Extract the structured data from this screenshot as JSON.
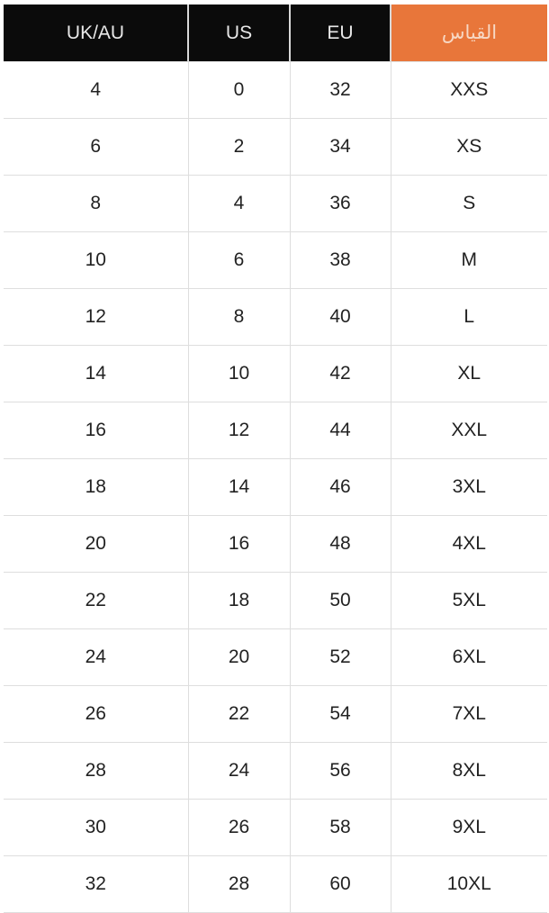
{
  "colors": {
    "header_bg": "#0b0b0b",
    "accent_header_bg": "#e8763a",
    "grid": "#dedede"
  },
  "headers": [
    "UK/AU",
    "US",
    "EU",
    "القياس"
  ],
  "rows": [
    [
      "4",
      "0",
      "32",
      "XXS"
    ],
    [
      "6",
      "2",
      "34",
      "XS"
    ],
    [
      "8",
      "4",
      "36",
      "S"
    ],
    [
      "10",
      "6",
      "38",
      "M"
    ],
    [
      "12",
      "8",
      "40",
      "L"
    ],
    [
      "14",
      "10",
      "42",
      "XL"
    ],
    [
      "16",
      "12",
      "44",
      "XXL"
    ],
    [
      "18",
      "14",
      "46",
      "3XL"
    ],
    [
      "20",
      "16",
      "48",
      "4XL"
    ],
    [
      "22",
      "18",
      "50",
      "5XL"
    ],
    [
      "24",
      "20",
      "52",
      "6XL"
    ],
    [
      "26",
      "22",
      "54",
      "7XL"
    ],
    [
      "28",
      "24",
      "56",
      "8XL"
    ],
    [
      "30",
      "26",
      "58",
      "9XL"
    ],
    [
      "32",
      "28",
      "60",
      "10XL"
    ]
  ]
}
